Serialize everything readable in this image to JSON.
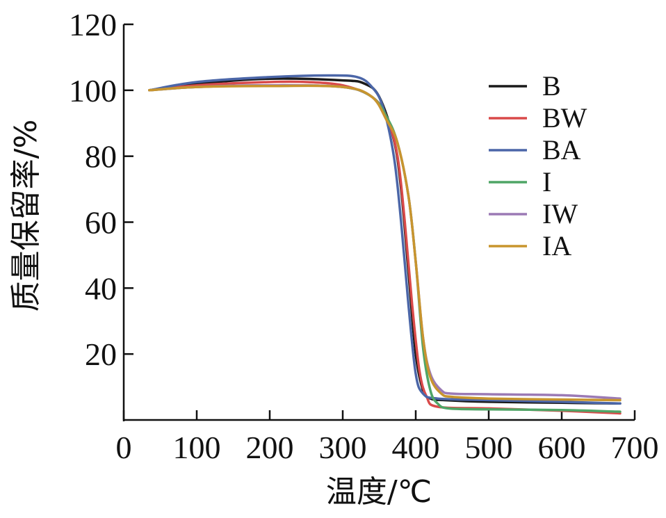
{
  "chart_data": {
    "type": "line",
    "title": "",
    "xlabel": "温度/℃",
    "ylabel": "质量保留率/%",
    "xlim": [
      0,
      700
    ],
    "ylim": [
      0,
      120
    ],
    "xticks": [
      0,
      100,
      200,
      300,
      400,
      500,
      600,
      700
    ],
    "yticks": [
      20,
      40,
      60,
      80,
      100,
      120
    ],
    "xtick_labels": [
      "0",
      "100",
      "200",
      "300",
      "400",
      "500",
      "600",
      "700"
    ],
    "ytick_labels": [
      "20",
      "40",
      "60",
      "80",
      "100",
      "120"
    ],
    "grid": false,
    "legend_position": "top-right",
    "series": [
      {
        "name": "B",
        "color": "#1a1a1a",
        "x": [
          35,
          100,
          200,
          300,
          330,
          350,
          370,
          380,
          390,
          400,
          410,
          420,
          440,
          500,
          600,
          680
        ],
        "y": [
          100,
          102,
          103.5,
          103,
          102,
          98,
          85,
          70,
          45,
          20,
          9,
          6.5,
          6,
          5.5,
          5.2,
          5
        ]
      },
      {
        "name": "BW",
        "color": "#d94a4a",
        "x": [
          35,
          100,
          200,
          250,
          300,
          340,
          360,
          375,
          385,
          395,
          405,
          415,
          430,
          500,
          600,
          680
        ],
        "y": [
          100,
          101.5,
          102.5,
          102.5,
          101.5,
          98,
          92,
          80,
          60,
          35,
          15,
          7,
          4,
          3.5,
          2.8,
          2
        ]
      },
      {
        "name": "BA",
        "color": "#4b66a8",
        "x": [
          35,
          100,
          200,
          280,
          320,
          340,
          355,
          370,
          380,
          390,
          400,
          410,
          430,
          500,
          600,
          680
        ],
        "y": [
          100,
          102.5,
          104,
          104.5,
          104,
          101,
          95,
          80,
          60,
          35,
          14,
          8,
          6.5,
          6,
          5.5,
          5
        ]
      },
      {
        "name": "I",
        "color": "#4fa566",
        "x": [
          35,
          100,
          200,
          300,
          340,
          360,
          375,
          390,
          400,
          410,
          420,
          430,
          445,
          500,
          600,
          680
        ],
        "y": [
          100,
          101,
          101.5,
          101,
          98,
          92,
          84,
          68,
          48,
          22,
          9,
          5,
          3.5,
          3.2,
          3,
          2.5
        ]
      },
      {
        "name": "IW",
        "color": "#9b7ab5",
        "x": [
          35,
          100,
          200,
          300,
          340,
          360,
          375,
          390,
          400,
          410,
          420,
          435,
          450,
          500,
          600,
          680
        ],
        "y": [
          100,
          101,
          101.5,
          101,
          98,
          91,
          84,
          68,
          48,
          25,
          14,
          9,
          8,
          7.8,
          7.5,
          6.5
        ]
      },
      {
        "name": "IA",
        "color": "#c8952e",
        "x": [
          35,
          100,
          200,
          300,
          340,
          360,
          375,
          390,
          400,
          410,
          420,
          435,
          450,
          500,
          600,
          680
        ],
        "y": [
          100,
          101,
          101.3,
          101,
          98,
          91,
          84,
          68,
          48,
          25,
          13,
          8,
          7,
          6.5,
          6.2,
          6
        ]
      }
    ]
  }
}
